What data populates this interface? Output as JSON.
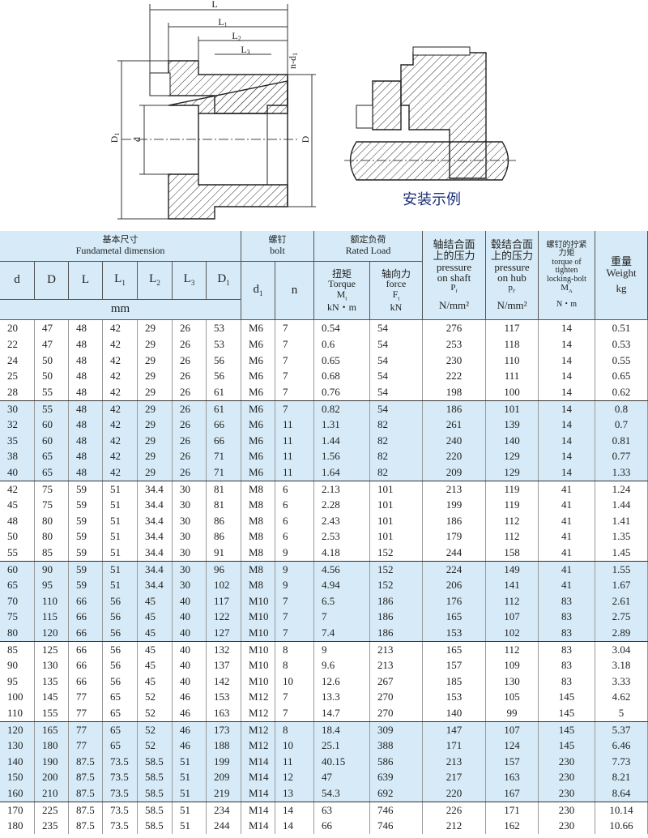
{
  "drawing": {
    "dimension_labels": [
      "L",
      {
        "base": "L",
        "sub": "1"
      },
      {
        "base": "L",
        "sub": "2"
      },
      {
        "base": "L",
        "sub": "3"
      },
      {
        "base": "n-d",
        "sub": "1"
      },
      {
        "base": "D",
        "sub": "1"
      },
      "d",
      "D"
    ],
    "caption": "安装示例"
  },
  "table": {
    "header": {
      "groups": [
        {
          "zh": "基本尺寸",
          "en": "Fundametal dimension"
        },
        {
          "zh": "螺钉",
          "en": "bolt"
        },
        {
          "zh": "额定负荷",
          "en": "Rated Load"
        }
      ],
      "dims": [
        "d",
        "D",
        "L",
        {
          "base": "L",
          "sub": "1"
        },
        {
          "base": "L",
          "sub": "2"
        },
        {
          "base": "L",
          "sub": "3"
        },
        {
          "base": "D",
          "sub": "1"
        }
      ],
      "unit_mm": "mm",
      "bolt": [
        {
          "base": "d",
          "sub": "1"
        },
        "n"
      ],
      "load": [
        {
          "zh": "扭矩",
          "en": "Torque",
          "sym": {
            "base": "M",
            "sub": "t"
          },
          "unit": "kN・m"
        },
        {
          "zh": "轴向力",
          "en": "force",
          "sym": {
            "base": "F",
            "sub": "t"
          },
          "unit": "kN"
        }
      ],
      "right": [
        {
          "zh": [
            "轴结合面",
            "上的压力"
          ],
          "en": [
            "pressure",
            "on shaft"
          ],
          "sym": {
            "base": "P",
            "sub": "f"
          },
          "unit": "N/mm²"
        },
        {
          "zh": [
            "毂结合面",
            "上的压力"
          ],
          "en": [
            "pressure",
            "on hub"
          ],
          "sym": {
            "base": "p",
            "sub": "f'"
          },
          "unit": "N/mm²"
        },
        {
          "zh": [
            "螺钉的拧紧",
            "力矩"
          ],
          "en": [
            "torque of",
            "tighten",
            "locking-bolt"
          ],
          "sym": {
            "base": "M",
            "sub": "A"
          },
          "unit": "N・m"
        },
        {
          "zh": [
            "重量"
          ],
          "en": [
            "Weight"
          ],
          "unit": "kg"
        }
      ]
    },
    "rows": [
      [
        "20",
        "47",
        "48",
        "42",
        "29",
        "26",
        "53",
        "M6",
        "7",
        "0.54",
        "54",
        "276",
        "117",
        "14",
        "0.51"
      ],
      [
        "22",
        "47",
        "48",
        "42",
        "29",
        "26",
        "53",
        "M6",
        "7",
        "0.6",
        "54",
        "253",
        "118",
        "14",
        "0.53"
      ],
      [
        "24",
        "50",
        "48",
        "42",
        "29",
        "26",
        "56",
        "M6",
        "7",
        "0.65",
        "54",
        "230",
        "110",
        "14",
        "0.55"
      ],
      [
        "25",
        "50",
        "48",
        "42",
        "29",
        "26",
        "56",
        "M6",
        "7",
        "0.68",
        "54",
        "222",
        "111",
        "14",
        "0.65"
      ],
      [
        "28",
        "55",
        "48",
        "42",
        "29",
        "26",
        "61",
        "M6",
        "7",
        "0.76",
        "54",
        "198",
        "100",
        "14",
        "0.62"
      ],
      [
        "30",
        "55",
        "48",
        "42",
        "29",
        "26",
        "61",
        "M6",
        "7",
        "0.82",
        "54",
        "186",
        "101",
        "14",
        "0.8"
      ],
      [
        "32",
        "60",
        "48",
        "42",
        "29",
        "26",
        "66",
        "M6",
        "11",
        "1.31",
        "82",
        "261",
        "139",
        "14",
        "0.7"
      ],
      [
        "35",
        "60",
        "48",
        "42",
        "29",
        "26",
        "66",
        "M6",
        "11",
        "1.44",
        "82",
        "240",
        "140",
        "14",
        "0.81"
      ],
      [
        "38",
        "65",
        "48",
        "42",
        "29",
        "26",
        "71",
        "M6",
        "11",
        "1.56",
        "82",
        "220",
        "129",
        "14",
        "0.77"
      ],
      [
        "40",
        "65",
        "48",
        "42",
        "29",
        "26",
        "71",
        "M6",
        "11",
        "1.64",
        "82",
        "209",
        "129",
        "14",
        "1.33"
      ],
      [
        "42",
        "75",
        "59",
        "51",
        "34.4",
        "30",
        "81",
        "M8",
        "6",
        "2.13",
        "101",
        "213",
        "119",
        "41",
        "1.24"
      ],
      [
        "45",
        "75",
        "59",
        "51",
        "34.4",
        "30",
        "81",
        "M8",
        "6",
        "2.28",
        "101",
        "199",
        "119",
        "41",
        "1.44"
      ],
      [
        "48",
        "80",
        "59",
        "51",
        "34.4",
        "30",
        "86",
        "M8",
        "6",
        "2.43",
        "101",
        "186",
        "112",
        "41",
        "1.41"
      ],
      [
        "50",
        "80",
        "59",
        "51",
        "34.4",
        "30",
        "86",
        "M8",
        "6",
        "2.53",
        "101",
        "179",
        "112",
        "41",
        "1.35"
      ],
      [
        "55",
        "85",
        "59",
        "51",
        "34.4",
        "30",
        "91",
        "M8",
        "9",
        "4.18",
        "152",
        "244",
        "158",
        "41",
        "1.45"
      ],
      [
        "60",
        "90",
        "59",
        "51",
        "34.4",
        "30",
        "96",
        "M8",
        "9",
        "4.56",
        "152",
        "224",
        "149",
        "41",
        "1.55"
      ],
      [
        "65",
        "95",
        "59",
        "51",
        "34.4",
        "30",
        "102",
        "M8",
        "9",
        "4.94",
        "152",
        "206",
        "141",
        "41",
        "1.67"
      ],
      [
        "70",
        "110",
        "66",
        "56",
        "45",
        "40",
        "117",
        "M10",
        "7",
        "6.5",
        "186",
        "176",
        "112",
        "83",
        "2.61"
      ],
      [
        "75",
        "115",
        "66",
        "56",
        "45",
        "40",
        "122",
        "M10",
        "7",
        "7",
        "186",
        "165",
        "107",
        "83",
        "2.75"
      ],
      [
        "80",
        "120",
        "66",
        "56",
        "45",
        "40",
        "127",
        "M10",
        "7",
        "7.4",
        "186",
        "153",
        "102",
        "83",
        "2.89"
      ],
      [
        "85",
        "125",
        "66",
        "56",
        "45",
        "40",
        "132",
        "M10",
        "8",
        "9",
        "213",
        "165",
        "112",
        "83",
        "3.04"
      ],
      [
        "90",
        "130",
        "66",
        "56",
        "45",
        "40",
        "137",
        "M10",
        "8",
        "9.6",
        "213",
        "157",
        "109",
        "83",
        "3.18"
      ],
      [
        "95",
        "135",
        "66",
        "56",
        "45",
        "40",
        "142",
        "M10",
        "10",
        "12.6",
        "267",
        "185",
        "130",
        "83",
        "3.33"
      ],
      [
        "100",
        "145",
        "77",
        "65",
        "52",
        "46",
        "153",
        "M12",
        "7",
        "13.3",
        "270",
        "153",
        "105",
        "145",
        "4.62"
      ],
      [
        "110",
        "155",
        "77",
        "65",
        "52",
        "46",
        "163",
        "M12",
        "7",
        "14.7",
        "270",
        "140",
        "99",
        "145",
        "5"
      ],
      [
        "120",
        "165",
        "77",
        "65",
        "52",
        "46",
        "173",
        "M12",
        "8",
        "18.4",
        "309",
        "147",
        "107",
        "145",
        "5.37"
      ],
      [
        "130",
        "180",
        "77",
        "65",
        "52",
        "46",
        "188",
        "M12",
        "10",
        "25.1",
        "388",
        "171",
        "124",
        "145",
        "6.46"
      ],
      [
        "140",
        "190",
        "87.5",
        "73.5",
        "58.5",
        "51",
        "199",
        "M14",
        "11",
        "40.15",
        "586",
        "213",
        "157",
        "230",
        "7.73"
      ],
      [
        "150",
        "200",
        "87.5",
        "73.5",
        "58.5",
        "51",
        "209",
        "M14",
        "12",
        "47",
        "639",
        "217",
        "163",
        "230",
        "8.21"
      ],
      [
        "160",
        "210",
        "87.5",
        "73.5",
        "58.5",
        "51",
        "219",
        "M14",
        "13",
        "54.3",
        "692",
        "220",
        "167",
        "230",
        "8.64"
      ],
      [
        "170",
        "225",
        "87.5",
        "73.5",
        "58.5",
        "51",
        "234",
        "M14",
        "14",
        "63",
        "746",
        "226",
        "171",
        "230",
        "10.14"
      ],
      [
        "180",
        "235",
        "87.5",
        "73.5",
        "58.5",
        "51",
        "244",
        "M14",
        "14",
        "66",
        "746",
        "212",
        "162",
        "230",
        "10.66"
      ]
    ]
  }
}
